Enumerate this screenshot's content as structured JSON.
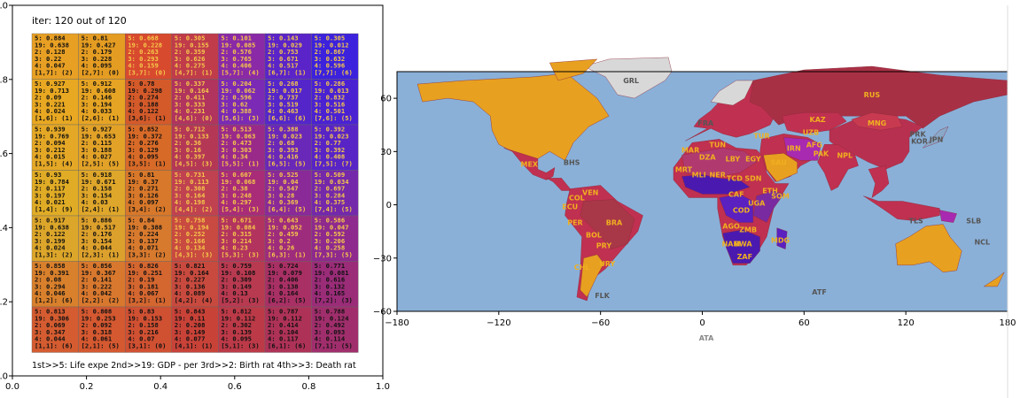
{
  "chart_data": [
    {
      "type": "heatmap",
      "title": "iter: 120 out of 120",
      "footer": "1st>>5: Life expe 2nd>>19: GDP - per 3rd>>2: Birth rat 4th>>3: Death rat",
      "xlim": [
        0.0,
        1.0
      ],
      "ylim": [
        0.0,
        1.0
      ],
      "xticks": [
        "0.0",
        "0.2",
        "0.4",
        "0.6",
        "0.8",
        "1.0"
      ],
      "yticks": [
        "0.0",
        "0.2",
        "0.4",
        "0.6",
        "0.8",
        "1.0"
      ],
      "grid_rows": 8,
      "grid_cols": 7,
      "cells": [
        [
          {
            "color": "#e8a024",
            "lines": [
              "5: 0.884",
              "19: 0.638",
              "2: 0.128",
              "3: 0.22",
              "4: 0.047",
              "[1,7]: (2)"
            ]
          },
          {
            "color": "#e49c22",
            "lines": [
              "5: 0.81",
              "19: 0.427",
              "2: 0.179",
              "3: 0.228",
              "4: 0.095",
              "[2,7]: (0)"
            ]
          },
          {
            "color": "#d84a2e",
            "lines": [
              "5: 0.668",
              "19: 0.228",
              "2: 0.263",
              "3: 0.293",
              "4: 0.159",
              "[3,7]: (0)"
            ]
          },
          {
            "color": "#c03c4a",
            "lines": [
              "5: 0.305",
              "19: 0.155",
              "2: 0.359",
              "3: 0.626",
              "4: 0.275",
              "[4,7]: (1)"
            ]
          },
          {
            "color": "#8a2aa6",
            "lines": [
              "5: 0.101",
              "19: 0.085",
              "2: 0.576",
              "3: 0.765",
              "4: 0.406",
              "[5,7]: (4)"
            ]
          },
          {
            "color": "#5a24c8",
            "lines": [
              "5: 0.143",
              "19: 0.029",
              "2: 0.753",
              "3: 0.671",
              "4: 0.517",
              "[6,7]: (1)"
            ]
          },
          {
            "color": "#3c22dc",
            "lines": [
              "5: 0.305",
              "19: 0.012",
              "2: 0.867",
              "3: 0.632",
              "4: 0.596",
              "[7,7]: (6)"
            ]
          }
        ],
        [
          {
            "color": "#e8a822",
            "lines": [
              "5: 0.927",
              "19: 0.713",
              "2: 0.09",
              "3: 0.221",
              "4: 0.024",
              "[1,6]: (1)"
            ]
          },
          {
            "color": "#e6a424",
            "lines": [
              "5: 0.912",
              "19: 0.608",
              "2: 0.146",
              "3: 0.194",
              "4: 0.033",
              "[2,6]: (1)"
            ]
          },
          {
            "color": "#d45a2a",
            "lines": [
              "5: 0.78",
              "19: 0.298",
              "2: 0.274",
              "3: 0.188",
              "4: 0.122",
              "[3,6]: (1)"
            ]
          },
          {
            "color": "#b0345e",
            "lines": [
              "5: 0.337",
              "19: 0.164",
              "2: 0.411",
              "3: 0.333",
              "4: 0.231",
              "[4,6]: (0)"
            ]
          },
          {
            "color": "#7a2ab4",
            "lines": [
              "5: 0.204",
              "19: 0.062",
              "2: 0.596",
              "3: 0.62",
              "4: 0.388",
              "[5,6]: (3)"
            ]
          },
          {
            "color": "#5426ca",
            "lines": [
              "5: 0.268",
              "19: 0.017",
              "2: 0.737",
              "3: 0.519",
              "4: 0.463",
              "[6,6]: (6)"
            ]
          },
          {
            "color": "#4a22d2",
            "lines": [
              "5: 0.286",
              "19: 0.013",
              "2: 0.832",
              "3: 0.516",
              "4: 0.501",
              "[7,6]: (5)"
            ]
          }
        ],
        [
          {
            "color": "#e4a826",
            "lines": [
              "5: 0.939",
              "19: 0.769",
              "2: 0.094",
              "3: 0.212",
              "4: 0.015",
              "[1,5]: (4)"
            ]
          },
          {
            "color": "#e2a228",
            "lines": [
              "5: 0.927",
              "19: 0.653",
              "2: 0.115",
              "3: 0.188",
              "4: 0.027",
              "[2,5]: (5)"
            ]
          },
          {
            "color": "#d86a28",
            "lines": [
              "5: 0.852",
              "19: 0.372",
              "2: 0.276",
              "3: 0.129",
              "4: 0.095",
              "[3,5]: (1)"
            ]
          },
          {
            "color": "#b43856",
            "lines": [
              "5: 0.712",
              "19: 0.133",
              "2: 0.36",
              "3: 0.16",
              "4: 0.397",
              "[4,5]: (3)"
            ]
          },
          {
            "color": "#9a2a8a",
            "lines": [
              "5: 0.513",
              "19: 0.063",
              "2: 0.473",
              "3: 0.303",
              "4: 0.34",
              "[5,5]: (1)"
            ]
          },
          {
            "color": "#6a28b8",
            "lines": [
              "5: 0.388",
              "19: 0.023",
              "2: 0.68",
              "3: 0.393",
              "4: 0.416",
              "[6,5]: (5)"
            ]
          },
          {
            "color": "#5824c6",
            "lines": [
              "5: 0.392",
              "19: 0.023",
              "2: 0.77",
              "3: 0.392",
              "4: 0.408",
              "[7,5]: (7)"
            ]
          }
        ],
        [
          {
            "color": "#e0ac26",
            "lines": [
              "5: 0.93",
              "19: 0.784",
              "2: 0.117",
              "3: 0.197",
              "4: 0.021",
              "[1,4]: (9)"
            ]
          },
          {
            "color": "#dea62a",
            "lines": [
              "5: 0.918",
              "19: 0.671",
              "2: 0.158",
              "3: 0.154",
              "4: 0.03",
              "[2,4]: (1)"
            ]
          },
          {
            "color": "#d8782a",
            "lines": [
              "5: 0.81",
              "19: 0.37",
              "2: 0.271",
              "3: 0.126",
              "4: 0.097",
              "[3,4]: (2)"
            ]
          },
          {
            "color": "#c04250",
            "lines": [
              "5: 0.731",
              "19: 0.113",
              "2: 0.308",
              "3: 0.164",
              "4: 0.198",
              "[4,4]: (2)"
            ]
          },
          {
            "color": "#a82c78",
            "lines": [
              "5: 0.607",
              "19: 0.068",
              "2: 0.38",
              "3: 0.248",
              "4: 0.297",
              "[5,4]: (3)"
            ]
          },
          {
            "color": "#8a2a98",
            "lines": [
              "5: 0.525",
              "19: 0.04",
              "2: 0.547",
              "3: 0.28",
              "4: 0.369",
              "[6,4]: (5)"
            ]
          },
          {
            "color": "#7428aa",
            "lines": [
              "5: 0.509",
              "19: 0.034",
              "2: 0.697",
              "3: 0.284",
              "4: 0.375",
              "[7,4]: (5)"
            ]
          }
        ],
        [
          {
            "color": "#dca62a",
            "lines": [
              "5: 0.917",
              "19: 0.638",
              "2: 0.122",
              "3: 0.199",
              "4: 0.024",
              "[1,3]: (2)"
            ]
          },
          {
            "color": "#dca02c",
            "lines": [
              "5: 0.886",
              "19: 0.517",
              "2: 0.176",
              "3: 0.154",
              "4: 0.044",
              "[2,3]: (1)"
            ]
          },
          {
            "color": "#d87a2e",
            "lines": [
              "5: 0.84",
              "19: 0.388",
              "2: 0.224",
              "3: 0.137",
              "4: 0.071",
              "[3,3]: (2)"
            ]
          },
          {
            "color": "#c84a40",
            "lines": [
              "5: 0.758",
              "19: 0.194",
              "2: 0.252",
              "3: 0.166",
              "4: 0.134",
              "[4,3]: (3)"
            ]
          },
          {
            "color": "#b2345e",
            "lines": [
              "5: 0.671",
              "19: 0.084",
              "2: 0.315",
              "3: 0.214",
              "4: 0.23",
              "[5,3]: (3)"
            ]
          },
          {
            "color": "#9e2c7c",
            "lines": [
              "5: 0.643",
              "19: 0.052",
              "2: 0.459",
              "3: 0.2",
              "4: 0.26",
              "[6,3]: (1)"
            ]
          },
          {
            "color": "#8e2a8e",
            "lines": [
              "5: 0.586",
              "19: 0.047",
              "2: 0.592",
              "3: 0.206",
              "4: 0.258",
              "[7,3]: (5)"
            ]
          }
        ],
        [
          {
            "color": "#d8802c",
            "lines": [
              "5: 0.858",
              "19: 0.391",
              "2: 0.08",
              "3: 0.294",
              "4: 0.046",
              "[1,2]: (6)"
            ]
          },
          {
            "color": "#d8782e",
            "lines": [
              "5: 0.856",
              "19: 0.367",
              "2: 0.141",
              "3: 0.222",
              "4: 0.042",
              "[2,2]: (2)"
            ]
          },
          {
            "color": "#d46630",
            "lines": [
              "5: 0.826",
              "19: 0.251",
              "2: 0.19",
              "3: 0.181",
              "4: 0.067",
              "[3,2]: (1)"
            ]
          },
          {
            "color": "#c84a3e",
            "lines": [
              "5: 0.821",
              "19: 0.164",
              "2: 0.227",
              "3: 0.136",
              "4: 0.089",
              "[4,2]: (4)"
            ]
          },
          {
            "color": "#b83a50",
            "lines": [
              "5: 0.759",
              "19: 0.108",
              "2: 0.309",
              "3: 0.149",
              "4: 0.13",
              "[5,2]: (3)"
            ]
          },
          {
            "color": "#a83064",
            "lines": [
              "5: 0.724",
              "19: 0.079",
              "2: 0.406",
              "3: 0.138",
              "4: 0.164",
              "[6,2]: (5)"
            ]
          },
          {
            "color": "#9a2c78",
            "lines": [
              "5: 0.771",
              "19: 0.081",
              "2: 0.616",
              "3: 0.132",
              "4: 0.165",
              "[7,2]: (3)"
            ]
          }
        ],
        [
          {
            "color": "#d45c30",
            "lines": [
              "5: 0.813",
              "19: 0.306",
              "2: 0.069",
              "3: 0.347",
              "4: 0.044",
              "[1,1]: (6)"
            ]
          },
          {
            "color": "#d45830",
            "lines": [
              "5: 0.808",
              "19: 0.253",
              "2: 0.092",
              "3: 0.318",
              "4: 0.061",
              "[2,1]: (5)"
            ]
          },
          {
            "color": "#d05032",
            "lines": [
              "5: 0.83",
              "19: 0.153",
              "2: 0.158",
              "3: 0.216",
              "4: 0.07",
              "[3,1]: (0)"
            ]
          },
          {
            "color": "#c84238",
            "lines": [
              "5: 0.843",
              "19: 0.11",
              "2: 0.208",
              "3: 0.149",
              "4: 0.077",
              "[4,1]: (1)"
            ]
          },
          {
            "color": "#bc3a48",
            "lines": [
              "5: 0.812",
              "19: 0.112",
              "2: 0.302",
              "3: 0.139",
              "4: 0.095",
              "[5,1]: (3)"
            ]
          },
          {
            "color": "#ae3258",
            "lines": [
              "5: 0.787",
              "19: 0.112",
              "2: 0.414",
              "3: 0.104",
              "4: 0.117",
              "[6,1]: (6)"
            ]
          },
          {
            "color": "#a02e6c",
            "lines": [
              "5: 0.788",
              "19: 0.124",
              "2: 0.492",
              "3: 0.093",
              "4: 0.114",
              "[7,1]: (5)"
            ]
          }
        ]
      ]
    },
    {
      "type": "map",
      "xlim": [
        -180,
        180
      ],
      "ylim": [
        -60,
        75
      ],
      "xticks": [
        "−180",
        "−120",
        "−60",
        "0",
        "60",
        "120",
        "180"
      ],
      "yticks": [
        "60",
        "30",
        "0",
        "−30",
        "−60"
      ],
      "ylabel_annotation": "",
      "xlabel": "ATA",
      "country_labels": [
        {
          "code": "GRL",
          "lon": -42,
          "lat": 70,
          "color": "#555555"
        },
        {
          "code": "RUS",
          "lon": 100,
          "lat": 62,
          "color": "#f0b020"
        },
        {
          "code": "KAZ",
          "lon": 68,
          "lat": 48,
          "color": "#f0b020"
        },
        {
          "code": "MNG",
          "lon": 103,
          "lat": 46,
          "color": "#f0b020"
        },
        {
          "code": "PRK",
          "lon": 127,
          "lat": 40,
          "color": "#555555"
        },
        {
          "code": "KOR",
          "lon": 128,
          "lat": 36,
          "color": "#555555"
        },
        {
          "code": "JPN",
          "lon": 138,
          "lat": 37,
          "color": "#555555"
        },
        {
          "code": "UZB",
          "lon": 64,
          "lat": 41,
          "color": "#f0b020"
        },
        {
          "code": "TUR",
          "lon": 35,
          "lat": 39,
          "color": "#f0b020"
        },
        {
          "code": "IRN",
          "lon": 54,
          "lat": 32,
          "color": "#f0b020"
        },
        {
          "code": "AFG",
          "lon": 66,
          "lat": 34,
          "color": "#f0b020"
        },
        {
          "code": "PAK",
          "lon": 70,
          "lat": 29,
          "color": "#f0b020"
        },
        {
          "code": "NPL",
          "lon": 84,
          "lat": 28,
          "color": "#f0b020"
        },
        {
          "code": "MAR",
          "lon": -7,
          "lat": 31,
          "color": "#f0b020"
        },
        {
          "code": "DZA",
          "lon": 3,
          "lat": 27,
          "color": "#f0b020"
        },
        {
          "code": "TUN",
          "lon": 9,
          "lat": 34,
          "color": "#f0b020"
        },
        {
          "code": "LBY",
          "lon": 18,
          "lat": 26,
          "color": "#f0b020"
        },
        {
          "code": "EGY",
          "lon": 30,
          "lat": 26,
          "color": "#f0b020"
        },
        {
          "code": "SAU",
          "lon": 45,
          "lat": 24,
          "color": "#f0b020"
        },
        {
          "code": "MRT",
          "lon": -11,
          "lat": 20,
          "color": "#f0b020"
        },
        {
          "code": "MLI",
          "lon": -2,
          "lat": 17,
          "color": "#f0b020"
        },
        {
          "code": "NER",
          "lon": 9,
          "lat": 17,
          "color": "#f0b020"
        },
        {
          "code": "TCD",
          "lon": 19,
          "lat": 15,
          "color": "#f0b020"
        },
        {
          "code": "SDN",
          "lon": 30,
          "lat": 15,
          "color": "#f0b020"
        },
        {
          "code": "ETH",
          "lon": 40,
          "lat": 8,
          "color": "#f0b020"
        },
        {
          "code": "SOM",
          "lon": 46,
          "lat": 5,
          "color": "#f0b020"
        },
        {
          "code": "CAF",
          "lon": 20,
          "lat": 6,
          "color": "#f0b020"
        },
        {
          "code": "COD",
          "lon": 23,
          "lat": -3,
          "color": "#f0b020"
        },
        {
          "code": "UGA",
          "lon": 32,
          "lat": 1,
          "color": "#f0b020"
        },
        {
          "code": "AGO",
          "lon": 17,
          "lat": -12,
          "color": "#f0b020"
        },
        {
          "code": "ZMB",
          "lon": 27,
          "lat": -14,
          "color": "#f0b020"
        },
        {
          "code": "NAM",
          "lon": 17,
          "lat": -22,
          "color": "#f0b020"
        },
        {
          "code": "BWA",
          "lon": 24,
          "lat": -22,
          "color": "#f0b020"
        },
        {
          "code": "ZAF",
          "lon": 25,
          "lat": -29,
          "color": "#f0b020"
        },
        {
          "code": "MDG",
          "lon": 46,
          "lat": -20,
          "color": "#f0b020"
        },
        {
          "code": "MEX",
          "lon": -102,
          "lat": 23,
          "color": "#f0b020"
        },
        {
          "code": "BHS",
          "lon": -77,
          "lat": 24,
          "color": "#555555"
        },
        {
          "code": "VEN",
          "lon": -66,
          "lat": 7,
          "color": "#f0b020"
        },
        {
          "code": "COL",
          "lon": -74,
          "lat": 4,
          "color": "#f0b020"
        },
        {
          "code": "ECU",
          "lon": -78,
          "lat": -1,
          "color": "#f0b020"
        },
        {
          "code": "PER",
          "lon": -75,
          "lat": -10,
          "color": "#f0b020"
        },
        {
          "code": "BRA",
          "lon": -52,
          "lat": -10,
          "color": "#f0b020"
        },
        {
          "code": "BOL",
          "lon": -64,
          "lat": -17,
          "color": "#f0b020"
        },
        {
          "code": "PRY",
          "lon": -58,
          "lat": -23,
          "color": "#f0b020"
        },
        {
          "code": "CHL",
          "lon": -71,
          "lat": -35,
          "color": "#f0b020"
        },
        {
          "code": "URY",
          "lon": -56,
          "lat": -33,
          "color": "#f0b020"
        },
        {
          "code": "FLK",
          "lon": -59,
          "lat": -51,
          "color": "#555555"
        },
        {
          "code": "FRA",
          "lon": 2,
          "lat": 46,
          "color": "#555555"
        },
        {
          "code": "SLB",
          "lon": 160,
          "lat": -9,
          "color": "#555555"
        },
        {
          "code": "NCL",
          "lon": 165,
          "lat": -21,
          "color": "#555555"
        },
        {
          "code": "ATF",
          "lon": 69,
          "lat": -49,
          "color": "#555555"
        },
        {
          "code": "TLS",
          "lon": 126,
          "lat": -9,
          "color": "#555555"
        }
      ]
    }
  ]
}
